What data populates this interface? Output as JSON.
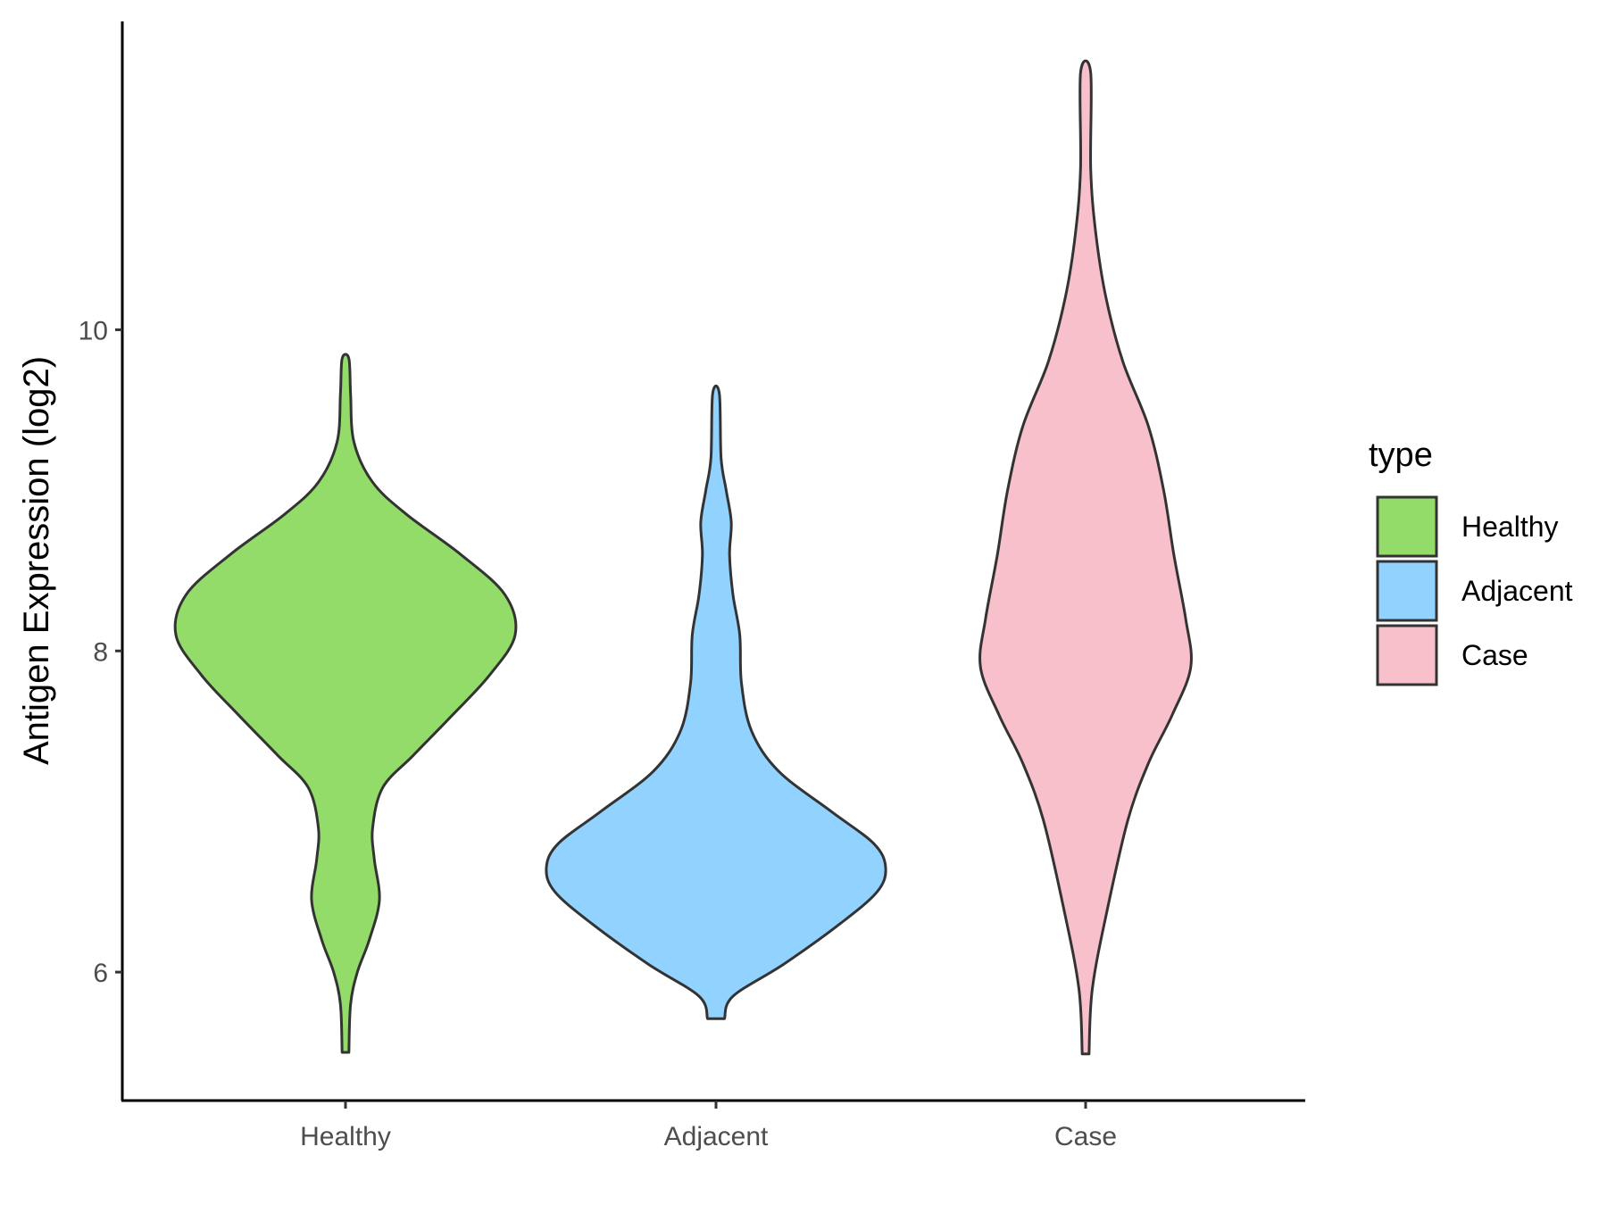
{
  "chart_data": {
    "type": "violin",
    "xlabel": "",
    "ylabel": "Antigen Expression (log2)",
    "ylim": [
      5.2,
      11.92
    ],
    "yticks": [
      6,
      8,
      10
    ],
    "categories": [
      "Healthy",
      "Adjacent",
      "Case"
    ],
    "grid": false,
    "legend": {
      "title": "type",
      "position": "right",
      "entries": [
        "Healthy",
        "Adjacent",
        "Case"
      ]
    },
    "series": [
      {
        "name": "Healthy",
        "color": "#93DC6A",
        "min": 5.5,
        "max": 9.82,
        "density_profile": [
          {
            "y": 5.5,
            "width": 0.02
          },
          {
            "y": 5.8,
            "width": 0.03
          },
          {
            "y": 6.0,
            "width": 0.07
          },
          {
            "y": 6.2,
            "width": 0.14
          },
          {
            "y": 6.45,
            "width": 0.2
          },
          {
            "y": 6.7,
            "width": 0.17
          },
          {
            "y": 6.9,
            "width": 0.16
          },
          {
            "y": 7.15,
            "width": 0.22
          },
          {
            "y": 7.35,
            "width": 0.4
          },
          {
            "y": 7.6,
            "width": 0.63
          },
          {
            "y": 7.85,
            "width": 0.85
          },
          {
            "y": 8.1,
            "width": 1.0
          },
          {
            "y": 8.35,
            "width": 0.94
          },
          {
            "y": 8.6,
            "width": 0.68
          },
          {
            "y": 8.85,
            "width": 0.36
          },
          {
            "y": 9.05,
            "width": 0.16
          },
          {
            "y": 9.3,
            "width": 0.05
          },
          {
            "y": 9.6,
            "width": 0.03
          },
          {
            "y": 9.82,
            "width": 0.02
          }
        ]
      },
      {
        "name": "Adjacent",
        "color": "#92D2FF",
        "min": 5.71,
        "max": 9.6,
        "density_profile": [
          {
            "y": 5.71,
            "width": 0.05
          },
          {
            "y": 5.85,
            "width": 0.1
          },
          {
            "y": 6.05,
            "width": 0.4
          },
          {
            "y": 6.3,
            "width": 0.73
          },
          {
            "y": 6.5,
            "width": 0.95
          },
          {
            "y": 6.65,
            "width": 1.0
          },
          {
            "y": 6.8,
            "width": 0.93
          },
          {
            "y": 7.0,
            "width": 0.68
          },
          {
            "y": 7.25,
            "width": 0.37
          },
          {
            "y": 7.5,
            "width": 0.21
          },
          {
            "y": 7.8,
            "width": 0.15
          },
          {
            "y": 8.1,
            "width": 0.14
          },
          {
            "y": 8.35,
            "width": 0.1
          },
          {
            "y": 8.6,
            "width": 0.08
          },
          {
            "y": 8.8,
            "width": 0.09
          },
          {
            "y": 9.0,
            "width": 0.06
          },
          {
            "y": 9.2,
            "width": 0.03
          },
          {
            "y": 9.6,
            "width": 0.02
          }
        ]
      },
      {
        "name": "Case",
        "color": "#F7C0CB",
        "min": 5.49,
        "max": 11.6,
        "density_profile": [
          {
            "y": 5.49,
            "width": 0.02
          },
          {
            "y": 5.9,
            "width": 0.04
          },
          {
            "y": 6.4,
            "width": 0.13
          },
          {
            "y": 6.95,
            "width": 0.25
          },
          {
            "y": 7.3,
            "width": 0.37
          },
          {
            "y": 7.6,
            "width": 0.51
          },
          {
            "y": 7.9,
            "width": 0.62
          },
          {
            "y": 8.2,
            "width": 0.59
          },
          {
            "y": 8.6,
            "width": 0.52
          },
          {
            "y": 9.0,
            "width": 0.46
          },
          {
            "y": 9.4,
            "width": 0.37
          },
          {
            "y": 9.8,
            "width": 0.22
          },
          {
            "y": 10.2,
            "width": 0.12
          },
          {
            "y": 10.6,
            "width": 0.06
          },
          {
            "y": 11.0,
            "width": 0.03
          },
          {
            "y": 11.6,
            "width": 0.03
          }
        ]
      }
    ]
  }
}
